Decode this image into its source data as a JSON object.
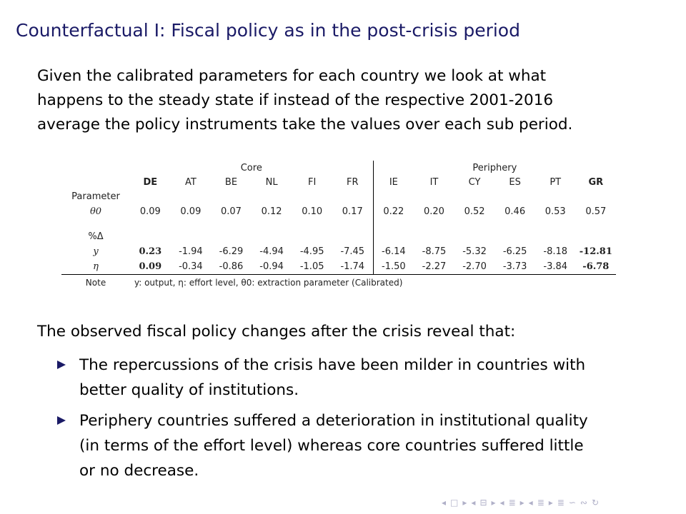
{
  "title": "Counterfactual I: Fiscal policy as in the post-crisis period",
  "intro_lines": [
    "Given the calibrated parameters for each country we look at what",
    "happens to the steady state if instead of the respective 2001-2016",
    "average the policy instruments take the values over each sub period."
  ],
  "table": {
    "group_core": "Core",
    "group_periphery": "Periphery",
    "countries": [
      "DE",
      "AT",
      "BE",
      "NL",
      "FI",
      "FR",
      "IE",
      "IT",
      "CY",
      "ES",
      "PT",
      "GR"
    ],
    "parameter_label": "Parameter",
    "theta_label": "θ0",
    "theta_values": [
      "0.09",
      "0.09",
      "0.07",
      "0.12",
      "0.10",
      "0.17",
      "0.22",
      "0.20",
      "0.52",
      "0.46",
      "0.53",
      "0.57"
    ],
    "pct_label": "%Δ",
    "y_label": "y",
    "y_values": [
      "0.23",
      "-1.94",
      "-6.29",
      "-4.94",
      "-4.95",
      "-7.45",
      "-6.14",
      "-8.75",
      "-5.32",
      "-6.25",
      "-8.18",
      "-12.81"
    ],
    "eta_label": "η",
    "eta_values": [
      "0.09",
      "-0.34",
      "-0.86",
      "-0.94",
      "-1.05",
      "-1.74",
      "-1.50",
      "-2.27",
      "-2.70",
      "-3.73",
      "-3.84",
      "-6.78"
    ],
    "note_label": "Note",
    "note_text": "y: output, η: effort level, θ0: extraction parameter (Calibrated)"
  },
  "observation": "The observed fiscal policy changes after the crisis reveal that:",
  "bullets": [
    [
      "The repercussions of the crisis have been milder in countries with",
      "better quality of institutions."
    ],
    [
      "Periphery countries suffered a deterioration in institutional quality",
      "(in terms of the effort level) whereas core countries suffered little",
      "or no decrease."
    ]
  ],
  "nav_symbols": [
    "◂",
    "□",
    "▸",
    "◂",
    "⊟",
    "▸",
    "◂",
    "≣",
    "▸",
    "◂",
    "≣",
    "▸",
    "≣",
    "∽",
    "∾",
    "↻"
  ]
}
